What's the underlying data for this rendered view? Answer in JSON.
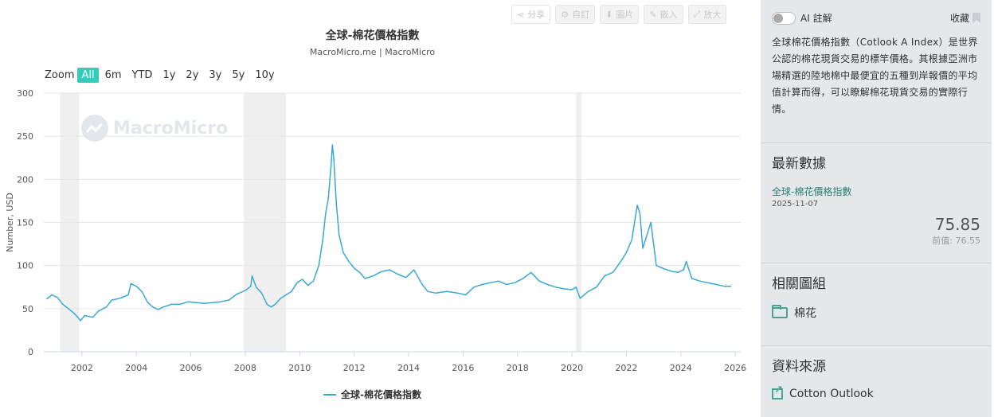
{
  "toolbar": {
    "share": "分享",
    "custom": "自訂",
    "image": "圖片",
    "embed": "嵌入",
    "enlarge": "放大"
  },
  "zoom": {
    "label": "Zoom",
    "options": [
      "All",
      "6m",
      "YTD",
      "1y",
      "2y",
      "3y",
      "5y",
      "10y"
    ],
    "active": "All"
  },
  "watermark": "MacroMicro",
  "colors": {
    "series": "#3aa8d4",
    "recession": "#efefef",
    "accent": "#33ccbb",
    "link": "#2a7d6e"
  },
  "chart_data": {
    "type": "line",
    "title": "全球-棉花價格指數",
    "subtitle": "MacroMicro.me | MacroMicro",
    "ylabel": "Number, USD",
    "xlabel": "",
    "ylim": [
      0,
      300
    ],
    "xlim": [
      2000.6,
      2026.2
    ],
    "yticks": [
      0,
      50,
      100,
      150,
      200,
      250,
      300
    ],
    "xticks": [
      2002,
      2004,
      2006,
      2008,
      2010,
      2012,
      2014,
      2016,
      2018,
      2020,
      2022,
      2024,
      2026
    ],
    "grid": true,
    "legend_position": "bottom-center",
    "shaded_periods": [
      [
        2001.2,
        2001.9
      ],
      [
        2007.95,
        2009.5
      ],
      [
        2020.15,
        2020.35
      ]
    ],
    "series": [
      {
        "name": "全球-棉花價格指數",
        "x": [
          2000.7,
          2000.9,
          2001.1,
          2001.3,
          2001.5,
          2001.7,
          2001.85,
          2001.95,
          2002.1,
          2002.4,
          2002.6,
          2002.9,
          2003.1,
          2003.4,
          2003.7,
          2003.8,
          2004.0,
          2004.2,
          2004.4,
          2004.6,
          2004.8,
          2005.0,
          2005.3,
          2005.6,
          2005.9,
          2006.2,
          2006.5,
          2006.8,
          2007.1,
          2007.4,
          2007.7,
          2008.0,
          2008.2,
          2008.25,
          2008.4,
          2008.6,
          2008.8,
          2008.95,
          2009.1,
          2009.3,
          2009.5,
          2009.7,
          2009.9,
          2010.1,
          2010.3,
          2010.5,
          2010.7,
          2010.85,
          2010.95,
          2011.05,
          2011.15,
          2011.2,
          2011.25,
          2011.35,
          2011.45,
          2011.6,
          2011.8,
          2012.0,
          2012.2,
          2012.4,
          2012.7,
          2013.0,
          2013.3,
          2013.6,
          2013.9,
          2014.2,
          2014.5,
          2014.7,
          2015.0,
          2015.4,
          2015.8,
          2016.1,
          2016.4,
          2016.7,
          2017.0,
          2017.3,
          2017.6,
          2017.9,
          2018.2,
          2018.5,
          2018.8,
          2019.1,
          2019.4,
          2019.7,
          2020.0,
          2020.15,
          2020.3,
          2020.6,
          2020.9,
          2021.2,
          2021.5,
          2021.8,
          2022.0,
          2022.2,
          2022.3,
          2022.4,
          2022.5,
          2022.6,
          2022.75,
          2022.9,
          2023.1,
          2023.4,
          2023.7,
          2023.9,
          2024.1,
          2024.2,
          2024.4,
          2024.7,
          2025.0,
          2025.3,
          2025.6,
          2025.85
        ],
        "y": [
          61,
          66,
          63,
          55,
          50,
          45,
          40,
          36,
          42,
          40,
          47,
          52,
          60,
          62,
          66,
          79,
          76,
          70,
          58,
          52,
          49,
          52,
          55,
          55,
          58,
          57,
          56,
          57,
          58,
          60,
          67,
          71,
          76,
          88,
          75,
          68,
          55,
          52,
          55,
          62,
          66,
          70,
          80,
          84,
          77,
          82,
          100,
          130,
          160,
          178,
          215,
          240,
          225,
          170,
          135,
          115,
          105,
          97,
          92,
          85,
          88,
          93,
          95,
          90,
          86,
          95,
          78,
          70,
          68,
          70,
          68,
          66,
          75,
          78,
          80,
          82,
          78,
          80,
          85,
          92,
          82,
          78,
          75,
          73,
          72,
          75,
          62,
          70,
          75,
          88,
          92,
          105,
          115,
          130,
          150,
          170,
          160,
          120,
          135,
          150,
          100,
          96,
          93,
          92,
          95,
          105,
          85,
          82,
          80,
          78,
          76,
          75.85
        ]
      }
    ]
  },
  "sidebar": {
    "ai_label": "AI 註解",
    "fav_label": "收藏",
    "description": "全球棉花價格指數（Cotlook A Index）是世界公認的棉花現貨交易的標竿價格。其根據亞洲市場精選的陸地棉中最便宜的五種到岸報價的平均值計算而得，可以瞭解棉花現貨交易的實際行情。",
    "latest_heading": "最新數據",
    "latest_name": "全球-棉花價格指數",
    "latest_date": "2025-11-07",
    "latest_value": "75.85",
    "prev_label": "前值:",
    "prev_value": "76.55",
    "related_heading": "相關圖組",
    "related_item": "棉花",
    "source_heading": "資料來源",
    "source_item": "Cotton Outlook"
  }
}
